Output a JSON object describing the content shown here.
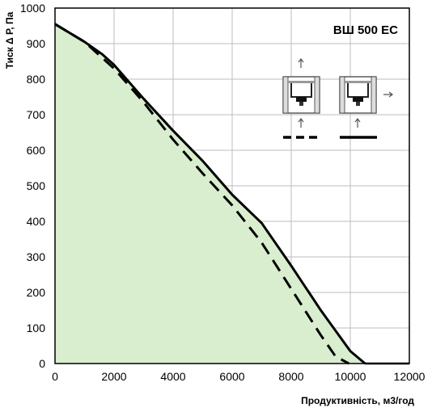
{
  "chart_data": {
    "type": "area",
    "title": "ВШ 500 ЕС",
    "xlabel": "Продуктивність, м3/год",
    "ylabel": "Тиск Δ Р, Па",
    "xlim": [
      0,
      12000
    ],
    "ylim": [
      0,
      1000
    ],
    "x_ticks": [
      "0",
      "2000",
      "4000",
      "6000",
      "8000",
      "10000",
      "12000"
    ],
    "y_ticks": [
      "0",
      "100",
      "200",
      "300",
      "400",
      "500",
      "600",
      "700",
      "800",
      "900",
      "1000"
    ],
    "grid": true,
    "colors": {
      "fill": "#d9edcf",
      "line": "#000000",
      "grid": "#bdbdbd"
    },
    "series": [
      {
        "style": "solid",
        "x": [
          0,
          1000,
          1600,
          2000,
          3000,
          4000,
          5000,
          6000,
          7000,
          8000,
          9000,
          10000,
          10500
        ],
        "y": [
          955,
          905,
          870,
          840,
          745,
          655,
          570,
          475,
          395,
          275,
          150,
          35,
          0
        ]
      },
      {
        "style": "dashed",
        "x": [
          0,
          1000,
          2000,
          3000,
          4000,
          5000,
          6000,
          7000,
          8000,
          9000,
          9500,
          9950
        ],
        "y": [
          955,
          905,
          830,
          735,
          630,
          535,
          445,
          340,
          210,
          80,
          20,
          0
        ]
      }
    ]
  },
  "diagram": {
    "icons": [
      "arrow-up-icon",
      "fan-housing-icon",
      "arrow-right-icon",
      "arrow-up-icon"
    ]
  }
}
